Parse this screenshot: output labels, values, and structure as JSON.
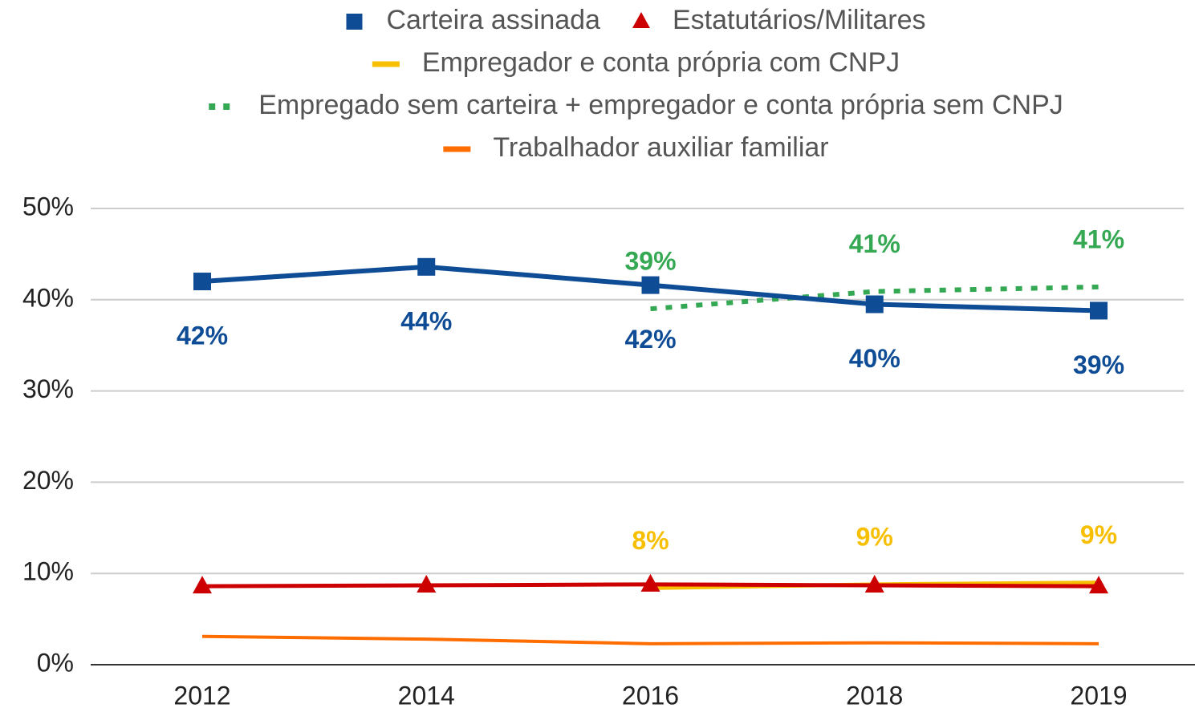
{
  "chart_data": {
    "type": "line",
    "categories": [
      "2012",
      "2014",
      "2016",
      "2018",
      "2019"
    ],
    "ylim": [
      0,
      50
    ],
    "yticks": [
      {
        "value": 0,
        "label": "0%"
      },
      {
        "value": 10,
        "label": "10%"
      },
      {
        "value": 20,
        "label": "20%"
      },
      {
        "value": 30,
        "label": "30%"
      },
      {
        "value": 40,
        "label": "40%"
      },
      {
        "value": 50,
        "label": "50%"
      }
    ],
    "grid": true,
    "legend": "top",
    "series": [
      {
        "name": "Carteira assinada",
        "color": "#0f4c96",
        "marker": "square",
        "values": [
          42.0,
          43.6,
          41.6,
          39.5,
          38.8
        ],
        "value_labels": [
          "42%",
          "44%",
          "42%",
          "40%",
          "39%"
        ]
      },
      {
        "name": "Estatutários/Militares",
        "color": "#cc0000",
        "marker": "triangle",
        "values": [
          8.6,
          8.7,
          8.8,
          8.7,
          8.6
        ]
      },
      {
        "name": "Empregador e conta própria com CNPJ",
        "color": "#f7bf00",
        "values": [
          null,
          null,
          8.4,
          8.8,
          9.0
        ],
        "value_labels": [
          null,
          null,
          "8%",
          "9%",
          "9%"
        ]
      },
      {
        "name": "Empregado sem carteira + empregador e conta própria sem CNPJ",
        "color": "#34a853",
        "style": "dotted",
        "values": [
          null,
          null,
          39.0,
          40.9,
          41.4
        ],
        "value_labels": [
          null,
          null,
          "39%",
          "41%",
          "41%"
        ]
      },
      {
        "name": "Trabalhador auxiliar familiar",
        "color": "#ff6d00",
        "values": [
          3.1,
          2.8,
          2.3,
          2.4,
          2.3
        ]
      }
    ]
  }
}
